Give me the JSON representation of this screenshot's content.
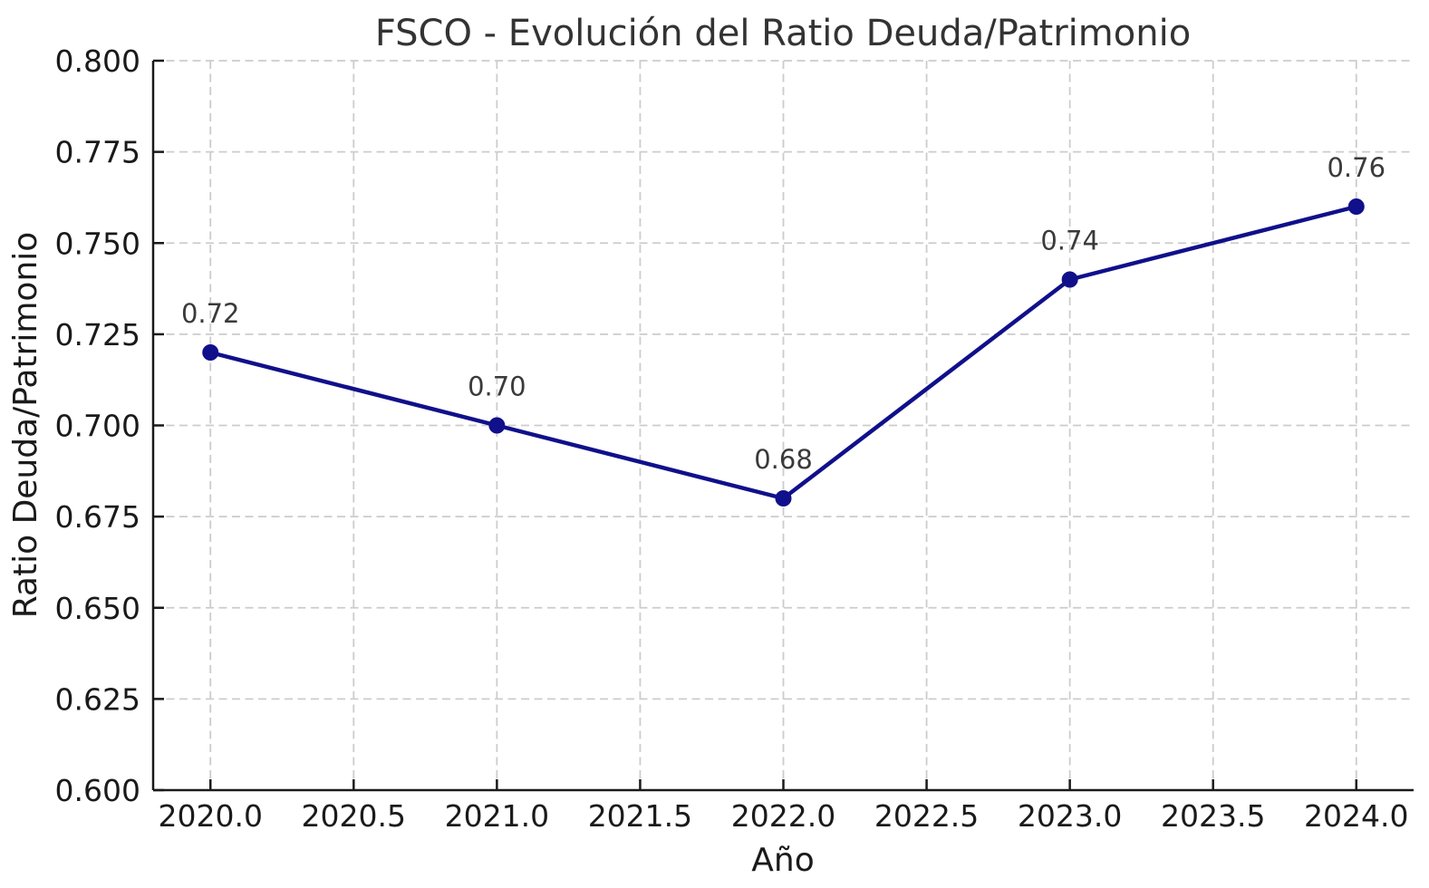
{
  "chart_data": {
    "type": "line",
    "title": "FSCO - Evolución del Ratio Deuda/Patrimonio",
    "xlabel": "Año",
    "ylabel": "Ratio Deuda/Patrimonio",
    "x": [
      2020,
      2021,
      2022,
      2023,
      2024
    ],
    "y": [
      0.72,
      0.7,
      0.68,
      0.74,
      0.76
    ],
    "point_labels": [
      "0.72",
      "0.70",
      "0.68",
      "0.74",
      "0.76"
    ],
    "x_tick_values": [
      2020.0,
      2020.5,
      2021.0,
      2021.5,
      2022.0,
      2022.5,
      2023.0,
      2023.5,
      2024.0
    ],
    "x_tick_labels": [
      "2020.0",
      "2020.5",
      "2021.0",
      "2021.5",
      "2022.0",
      "2022.5",
      "2023.0",
      "2023.5",
      "2024.0"
    ],
    "y_tick_values": [
      0.6,
      0.625,
      0.65,
      0.675,
      0.7,
      0.725,
      0.75,
      0.775,
      0.8
    ],
    "y_tick_labels": [
      "0.600",
      "0.625",
      "0.650",
      "0.675",
      "0.700",
      "0.725",
      "0.750",
      "0.775",
      "0.800"
    ],
    "xlim": [
      2019.8,
      2024.2
    ],
    "ylim": [
      0.6,
      0.8
    ],
    "grid": "dashed-both-axes",
    "legend": "none",
    "line_color": "#10108b",
    "marker_color": "#10108b",
    "grid_color": "#cccccc",
    "axis_color": "#1a1a1a",
    "text_color": "#1a1a1a",
    "title_color": "#333333",
    "annotation_color": "#3a3a3a",
    "background_color": "#ffffff"
  }
}
